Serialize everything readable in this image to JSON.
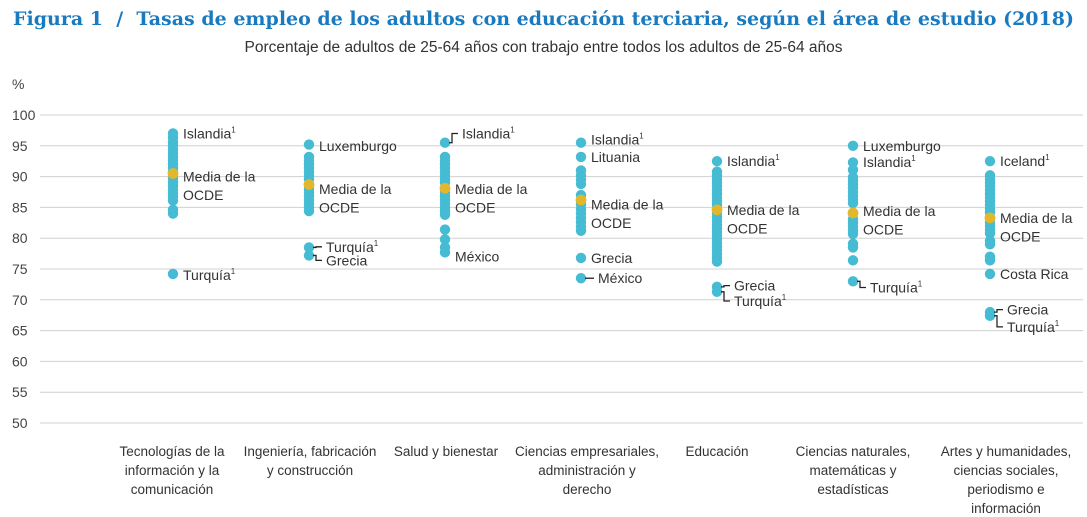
{
  "figure_label": "Figura 1",
  "title": "Tasas de empleo de los adultos con educación terciaria, según el área de estudio (2018)",
  "subtitle": "Porcentaje de adultos de 25-64 años con trabajo entre todos los adultos de 25-64 años",
  "colors": {
    "title": "#1a7abf",
    "dot": "#45bcd3",
    "oecd": "#e2b72c",
    "grid": "#d0d0d0"
  },
  "chart_data": {
    "type": "scatter",
    "y_unit": "%",
    "ylim": [
      50,
      100
    ],
    "yticks": [
      100,
      95,
      90,
      85,
      80,
      75,
      70,
      65,
      60,
      55,
      50
    ],
    "grid": true,
    "categories": [
      {
        "label": [
          "Tecnologías de la",
          "información y la",
          "comunicación"
        ],
        "values": [
          97,
          96.3,
          95.6,
          95,
          94.4,
          93.8,
          93.2,
          92.6,
          92,
          91.4,
          90.8,
          89.7,
          89.1,
          88.5,
          87.9,
          87.3,
          86.7,
          86.1,
          84.6,
          84,
          74.2
        ],
        "oecd_average": 90.5,
        "annotations": [
          {
            "text": "Islandia",
            "sup": "1",
            "value": 97,
            "y_text": 97,
            "leader": false
          },
          {
            "text": "Media de la",
            "sup": "",
            "value": 90.5,
            "y_text": 90,
            "leader": false
          },
          {
            "text": "OCDE",
            "sup": "",
            "value": 90.5,
            "y_text": 87,
            "leader": false
          },
          {
            "text": "Turquía",
            "sup": "1",
            "value": 74.2,
            "y_text": 74,
            "leader": false
          }
        ]
      },
      {
        "label": [
          "Ingeniería, fabricación",
          "y construcción"
        ],
        "values": [
          95.2,
          93.2,
          92.6,
          92,
          91.4,
          90.8,
          90.2,
          89.6,
          88,
          87.4,
          86.8,
          86.2,
          85.6,
          85,
          84.4,
          78.5,
          77.2
        ],
        "oecd_average": 88.7,
        "annotations": [
          {
            "text": "Luxemburgo",
            "sup": "",
            "value": 95.2,
            "y_text": 95,
            "leader": false
          },
          {
            "text": "Media de la",
            "sup": "",
            "value": 88.7,
            "y_text": 88,
            "leader": false
          },
          {
            "text": "OCDE",
            "sup": "",
            "value": 88.7,
            "y_text": 85,
            "leader": false
          },
          {
            "text": "Turquía",
            "sup": "1",
            "value": 78.5,
            "y_text": 78.6,
            "leader": true
          },
          {
            "text": "Grecia",
            "sup": "",
            "value": 77.2,
            "y_text": 76.4,
            "leader": true
          }
        ]
      },
      {
        "label": [
          "Salud y bienestar"
        ],
        "values": [
          95.5,
          93.2,
          92.6,
          92,
          91.4,
          90.8,
          90.2,
          89.6,
          89,
          87.4,
          86.8,
          86.2,
          85.6,
          85,
          84.4,
          83.8,
          81.4,
          79.8,
          78.5,
          77.7
        ],
        "oecd_average": 88.1,
        "annotations": [
          {
            "text": "Islandia",
            "sup": "1",
            "value": 95.5,
            "y_text": 97,
            "leader": true
          },
          {
            "text": "Media de la",
            "sup": "",
            "value": 88.1,
            "y_text": 88,
            "leader": false
          },
          {
            "text": "OCDE",
            "sup": "",
            "value": 88.1,
            "y_text": 85,
            "leader": false
          },
          {
            "text": "México",
            "sup": "",
            "value": 77.7,
            "y_text": 77,
            "leader": false
          }
        ]
      },
      {
        "label": [
          "Ciencias empresariales,",
          "administración y",
          "derecho"
        ],
        "values": [
          95.5,
          93.2,
          91,
          90.2,
          89.5,
          88.8,
          87,
          85.5,
          84.7,
          84,
          83.3,
          82.6,
          81.9,
          81.2,
          76.8,
          73.5
        ],
        "oecd_average": 86.2,
        "annotations": [
          {
            "text": "Islandia",
            "sup": "1",
            "value": 95.5,
            "y_text": 96,
            "leader": false
          },
          {
            "text": "Lituania",
            "sup": "",
            "value": 93.2,
            "y_text": 93.2,
            "leader": false
          },
          {
            "text": "Media de la",
            "sup": "",
            "value": 86.2,
            "y_text": 85.5,
            "leader": false
          },
          {
            "text": "OCDE",
            "sup": "",
            "value": 86.2,
            "y_text": 82.5,
            "leader": false
          },
          {
            "text": "Grecia",
            "sup": "",
            "value": 76.8,
            "y_text": 76.8,
            "leader": false
          },
          {
            "text": "México",
            "sup": "",
            "value": 73.5,
            "y_text": 73.5,
            "leader": true
          }
        ]
      },
      {
        "label": [
          "Educación"
        ],
        "values": [
          92.5,
          90.8,
          90.2,
          89.6,
          89,
          88.4,
          87.8,
          87.2,
          86.6,
          86,
          85.4,
          84,
          83.4,
          82.8,
          82.2,
          81.6,
          81,
          80.4,
          79.8,
          79.2,
          78.6,
          78,
          77.4,
          76.8,
          76.2,
          72.1,
          71.3
        ],
        "oecd_average": 84.6,
        "annotations": [
          {
            "text": "Islandia",
            "sup": "1",
            "value": 92.5,
            "y_text": 92.5,
            "leader": false
          },
          {
            "text": "Media de la",
            "sup": "",
            "value": 84.6,
            "y_text": 84.6,
            "leader": false
          },
          {
            "text": "OCDE",
            "sup": "",
            "value": 84.6,
            "y_text": 81.6,
            "leader": false
          },
          {
            "text": "Grecia",
            "sup": "",
            "value": 72.1,
            "y_text": 72.3,
            "leader": true
          },
          {
            "text": "Turquía",
            "sup": "1",
            "value": 71.3,
            "y_text": 69.8,
            "leader": true
          }
        ]
      },
      {
        "label": [
          "Ciencias naturales,",
          "matemáticas y",
          "estadísticas"
        ],
        "values": [
          95,
          92.3,
          91.1,
          89.9,
          89.3,
          88.7,
          88.1,
          87.5,
          86.9,
          86.3,
          85.7,
          83.1,
          82.5,
          81.9,
          81.3,
          80.7,
          79.1,
          78.5,
          76.4,
          73
        ],
        "oecd_average": 84.1,
        "annotations": [
          {
            "text": "Luxemburgo",
            "sup": "",
            "value": 95,
            "y_text": 95,
            "leader": false
          },
          {
            "text": "Islandia",
            "sup": "1",
            "value": 92.3,
            "y_text": 92.4,
            "leader": false
          },
          {
            "text": "Media de la",
            "sup": "",
            "value": 84.1,
            "y_text": 84.4,
            "leader": false
          },
          {
            "text": "OCDE",
            "sup": "",
            "value": 84.1,
            "y_text": 81.4,
            "leader": false
          },
          {
            "text": "Turquía",
            "sup": "1",
            "value": 73,
            "y_text": 72,
            "leader": true
          }
        ]
      },
      {
        "label": [
          "Artes y humanidades,",
          "ciencias sociales,",
          "periodismo e",
          "información"
        ],
        "values": [
          92.5,
          90.2,
          89.6,
          89,
          88.4,
          87.8,
          87.2,
          86.6,
          86,
          85.4,
          84.8,
          84.2,
          82.6,
          82,
          81.4,
          80.8,
          79.6,
          79,
          77,
          76.4,
          74.2,
          68,
          67.4
        ],
        "oecd_average": 83.3,
        "annotations": [
          {
            "text": "Iceland",
            "sup": "1",
            "value": 92.5,
            "y_text": 92.5,
            "leader": false
          },
          {
            "text": "Media de la",
            "sup": "",
            "value": 83.3,
            "y_text": 83.3,
            "leader": false
          },
          {
            "text": "OCDE",
            "sup": "",
            "value": 83.3,
            "y_text": 80.3,
            "leader": false
          },
          {
            "text": "Costa Rica",
            "sup": "",
            "value": 74.2,
            "y_text": 74.2,
            "leader": false
          },
          {
            "text": "Grecia",
            "sup": "",
            "value": 68,
            "y_text": 68.4,
            "leader": true
          },
          {
            "text": "Turquía",
            "sup": "1",
            "value": 67.4,
            "y_text": 65.6,
            "leader": true
          }
        ]
      }
    ]
  }
}
